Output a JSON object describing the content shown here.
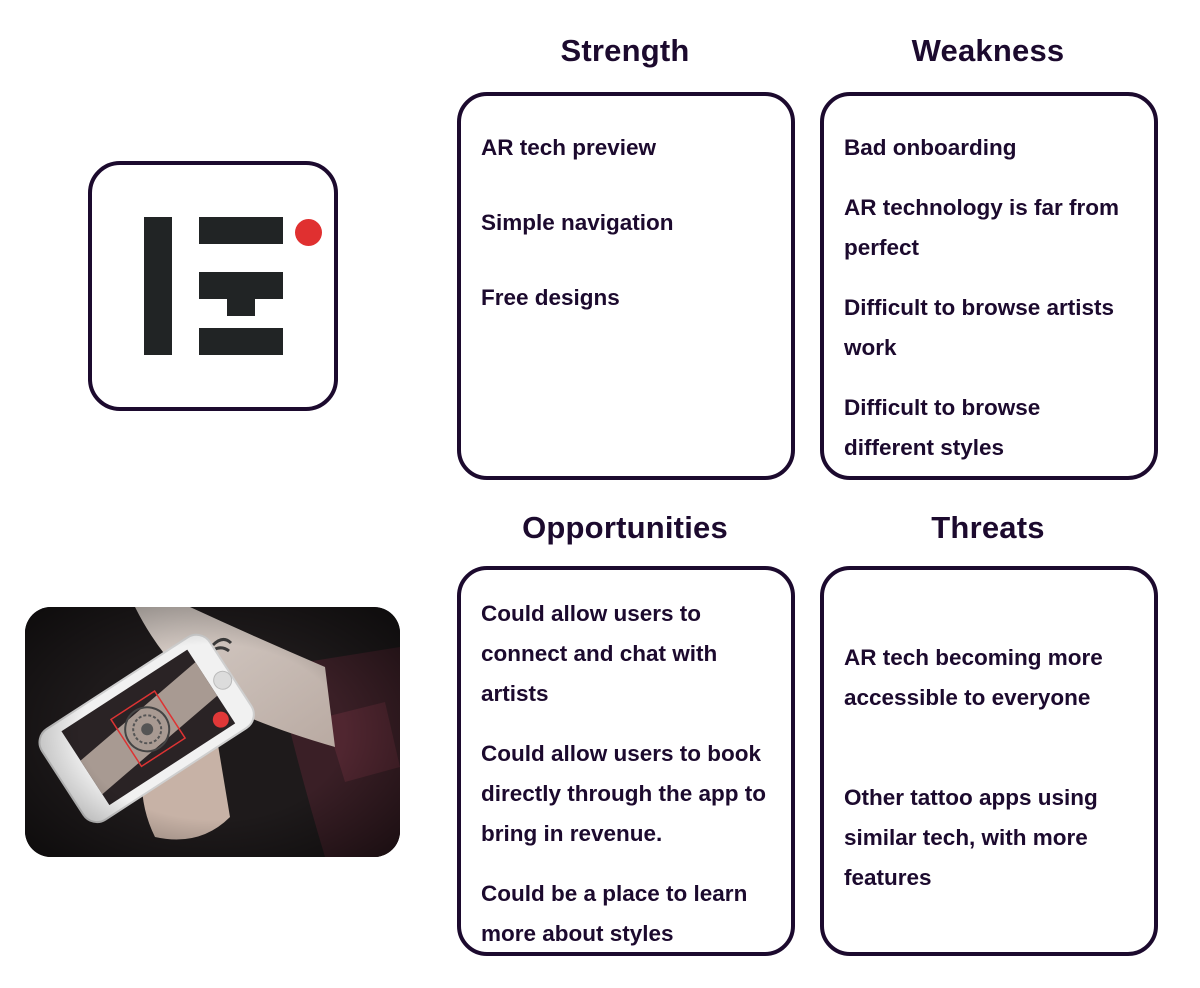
{
  "colors": {
    "ink": "#1c0a2e",
    "logo_dark": "#212425",
    "logo_accent": "#e03030",
    "photo_bg": "#1b1819"
  },
  "logo": {
    "icon": "tattoo-app-logo-icon"
  },
  "photo": {
    "description_icon": "phone-ar-tattoo-photo"
  },
  "swot": {
    "strength": {
      "title": "Strength",
      "items": [
        "AR tech preview",
        "Simple navigation",
        "Free designs"
      ]
    },
    "weakness": {
      "title": "Weakness",
      "items": [
        "Bad onboarding",
        "AR technology is far from perfect",
        "Difficult to browse artists work",
        "Difficult to browse different styles"
      ]
    },
    "opportunities": {
      "title": "Opportunities",
      "items": [
        "Could allow users to connect and chat with artists",
        "Could allow users to book directly through the app to bring in revenue.",
        "Could be  a place to learn more about styles"
      ]
    },
    "threats": {
      "title": "Threats",
      "items": [
        "AR tech becoming more accessible to everyone",
        "Other tattoo apps using similar tech, with more features"
      ]
    }
  }
}
